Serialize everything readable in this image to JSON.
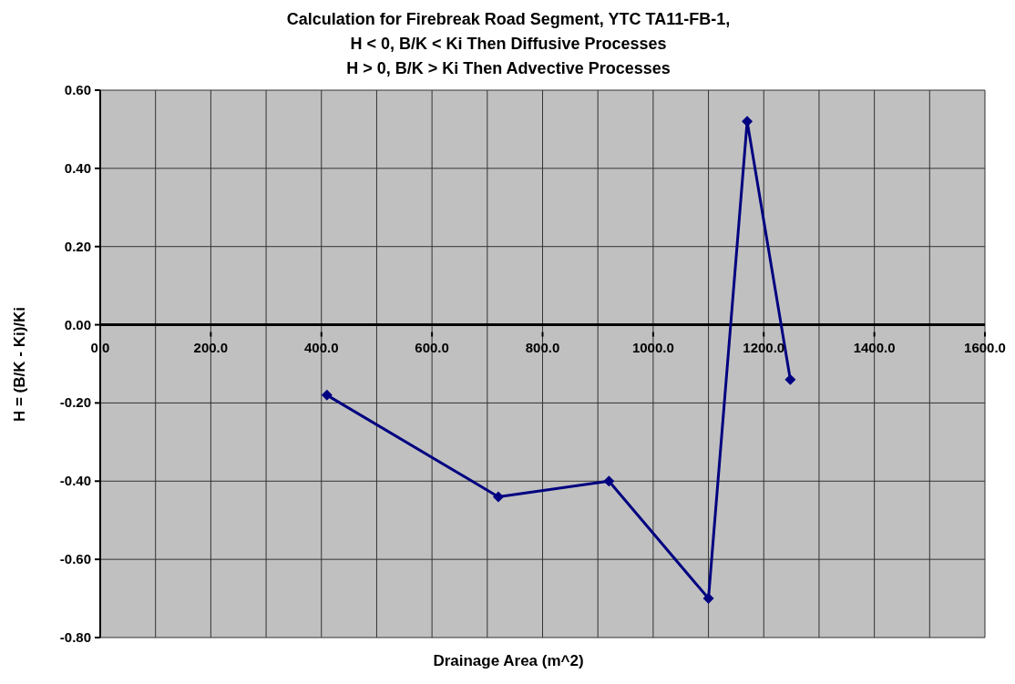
{
  "chart_data": {
    "type": "line",
    "title": "Calculation for Firebreak Road Segment, YTC TA11-FB-1,\nH < 0, B/K < Ki Then Diffusive Processes\nH > 0, B/K > Ki Then Advective Processes",
    "xlabel": "Drainage Area (m^2)",
    "ylabel": "H = (B/K - Ki)/Ki",
    "x": [
      410,
      720,
      920,
      1100,
      1170,
      1248
    ],
    "series": [
      {
        "color": "#000080",
        "values": [
          -0.18,
          -0.44,
          -0.4,
          -0.7,
          0.52,
          -0.14
        ]
      }
    ],
    "xlim": [
      0,
      1600
    ],
    "xticks": [
      {
        "value": 0,
        "label": "0.0"
      },
      {
        "value": 100,
        "label": null
      },
      {
        "value": 200,
        "label": "200.0"
      },
      {
        "value": 300,
        "label": null
      },
      {
        "value": 400,
        "label": "400.0"
      },
      {
        "value": 500,
        "label": null
      },
      {
        "value": 600,
        "label": "600.0"
      },
      {
        "value": 700,
        "label": null
      },
      {
        "value": 800,
        "label": "800.0"
      },
      {
        "value": 900,
        "label": null
      },
      {
        "value": 1000,
        "label": "1000.0"
      },
      {
        "value": 1100,
        "label": null
      },
      {
        "value": 1200,
        "label": "1200.0"
      },
      {
        "value": 1300,
        "label": null
      },
      {
        "value": 1400,
        "label": "1400.0"
      },
      {
        "value": 1500,
        "label": null
      },
      {
        "value": 1600,
        "label": "1600.0"
      }
    ],
    "ylim": [
      -0.8,
      0.6
    ],
    "yticks": [
      {
        "value": -0.8,
        "label": "-0.80"
      },
      {
        "value": -0.6,
        "label": "-0.60"
      },
      {
        "value": -0.4,
        "label": "-0.40"
      },
      {
        "value": -0.2,
        "label": "-0.20"
      },
      {
        "value": 0,
        "label": "0.00"
      },
      {
        "value": 0.2,
        "label": "0.20"
      },
      {
        "value": 0.4,
        "label": "0.40"
      },
      {
        "value": 0.6,
        "label": "0.60"
      }
    ],
    "grid": true,
    "marker": "diamond",
    "line_style": "solid"
  }
}
